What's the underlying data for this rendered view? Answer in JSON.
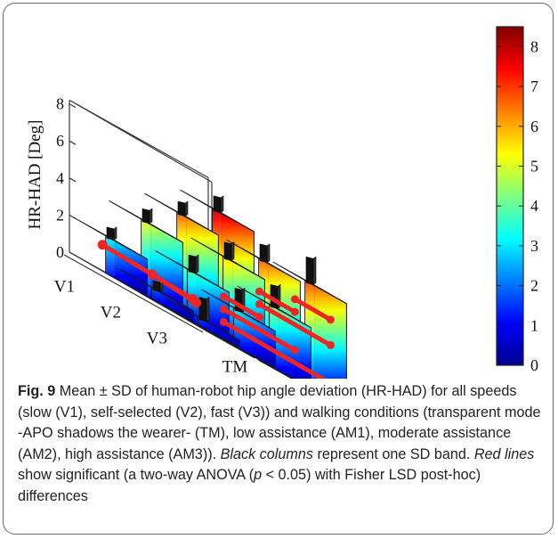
{
  "chart_data": {
    "type": "bar3d",
    "title": "",
    "zlabel": "HR-HAD [Deg]",
    "zlim": [
      0,
      8
    ],
    "zticks": [
      "0",
      "2",
      "4",
      "6",
      "8"
    ],
    "speeds": [
      "V1",
      "V2",
      "V3"
    ],
    "conditions": [
      "TM",
      "AM1",
      "AM2",
      "AM3"
    ],
    "colorbar": {
      "min": 0,
      "max": 8.5,
      "ticks": [
        "0",
        "1",
        "2",
        "3",
        "4",
        "5",
        "6",
        "7",
        "8"
      ]
    },
    "series": [
      {
        "name": "V1",
        "values": [
          2.0,
          4.0,
          5.5,
          6.8
        ],
        "sd": [
          0.6,
          0.7,
          0.7,
          0.8
        ]
      },
      {
        "name": "V2",
        "values": [
          0.6,
          2.7,
          4.5,
          5.5
        ],
        "sd": [
          0.5,
          0.9,
          0.9,
          0.9
        ]
      },
      {
        "name": "V3",
        "values": [
          0.4,
          2.0,
          3.3,
          5.7
        ],
        "sd": [
          1.2,
          1.2,
          1.2,
          1.4
        ]
      }
    ],
    "significance_lines": [
      {
        "type": "speed",
        "condition": "TM",
        "from": "V1",
        "to": "V3"
      },
      {
        "type": "speed",
        "condition": "TM",
        "from": "V2",
        "to": "V3"
      },
      {
        "type": "condition",
        "speed": "V3",
        "from": "TM",
        "to": "AM3"
      },
      {
        "type": "condition",
        "speed": "V3",
        "from": "TM",
        "to": "AM2"
      },
      {
        "type": "condition",
        "speed": "V3",
        "from": "TM",
        "to": "AM1"
      },
      {
        "type": "condition",
        "speed": "V3",
        "from": "AM1",
        "to": "AM3"
      },
      {
        "type": "condition",
        "speed": "V3",
        "from": "AM1",
        "to": "AM2"
      },
      {
        "type": "condition",
        "speed": "V3",
        "from": "AM2",
        "to": "AM3"
      }
    ]
  },
  "caption": {
    "fig_label": "Fig. 9",
    "p1": " Mean ± SD of human-robot hip angle deviation (HR-HAD) for all speeds (slow (V1), self-selected (V2), fast (V3)) and walking conditions (transparent mode -APO shadows the wearer- (TM), low assistance (AM1), moderate assistance (AM2), high assistance (AM3)). ",
    "black_cols": "Black columns",
    "p2": " represent one SD band. ",
    "red_lines": "Red lines",
    "p3": " show significant (a two-way ANOVA (",
    "p_var": "p",
    "p4": " < 0.05) with Fisher LSD post-hoc) differences"
  }
}
